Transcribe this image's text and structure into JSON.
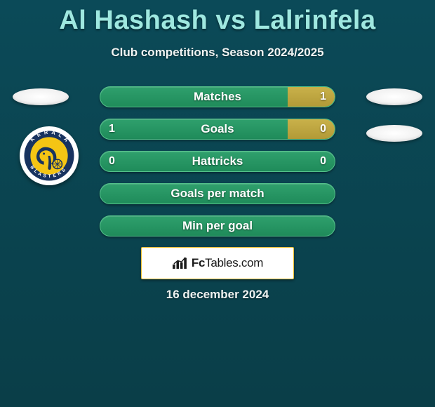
{
  "title": "Al Hashash vs Lalrinfela",
  "subtitle": "Club competitions, Season 2024/2025",
  "colors": {
    "bar_base": "#1f8b5a",
    "bar_fill": "#b29a37",
    "title": "#9fe8e0",
    "background_top": "#0b4a58",
    "background_bottom": "#0a3e48"
  },
  "rows": [
    {
      "label": "Matches",
      "left": "",
      "right": "1",
      "fill_left_pct": 0,
      "fill_right_pct": 20
    },
    {
      "label": "Goals",
      "left": "1",
      "right": "0",
      "fill_left_pct": 0,
      "fill_right_pct": 20
    },
    {
      "label": "Hattricks",
      "left": "0",
      "right": "0",
      "fill_left_pct": 0,
      "fill_right_pct": 0
    },
    {
      "label": "Goals per match",
      "left": "",
      "right": "",
      "fill_left_pct": 0,
      "fill_right_pct": 0
    },
    {
      "label": "Min per goal",
      "left": "",
      "right": "",
      "fill_left_pct": 0,
      "fill_right_pct": 0
    }
  ],
  "crest": {
    "name": "Kerala Blasters",
    "ring_color": "#18335f",
    "inner_color": "#f4c514"
  },
  "brand": {
    "logo_name": "fctables-bars-icon",
    "text_prefix": "Fc",
    "text_main": "Tables",
    "text_suffix": ".com"
  },
  "date": "16 december 2024"
}
